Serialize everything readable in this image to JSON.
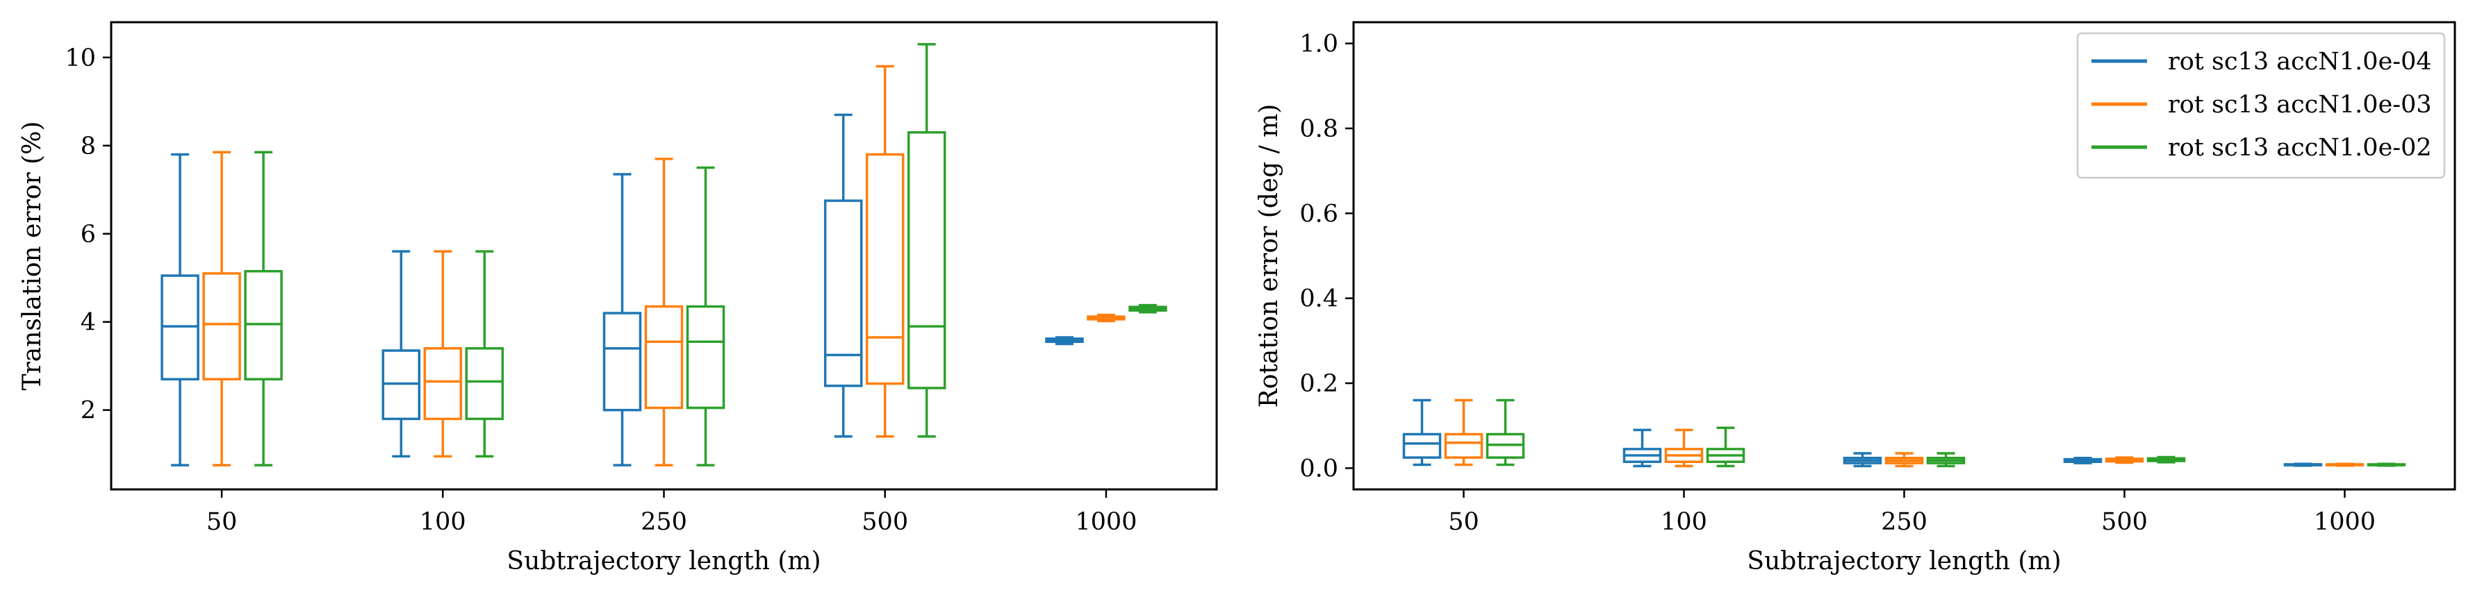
{
  "colors": {
    "series1": "#1f77b4",
    "series2": "#ff7f0e",
    "series3": "#2ca02c"
  },
  "chart_data": [
    {
      "type": "box",
      "xlabel": "Subtrajectory length (m)",
      "ylabel": "Translation error (%)",
      "ylim": [
        0.2,
        10.8
      ],
      "yticks": [
        "2",
        "4",
        "6",
        "8",
        "10"
      ],
      "categories": [
        "50",
        "100",
        "250",
        "500",
        "1000"
      ],
      "grid": false,
      "series": [
        {
          "name": "rot sc13 accN1.0e-04",
          "boxes": [
            {
              "min": 0.75,
              "q1": 2.7,
              "median": 3.9,
              "q3": 5.05,
              "max": 7.8
            },
            {
              "min": 0.95,
              "q1": 1.8,
              "median": 2.6,
              "q3": 3.35,
              "max": 5.6
            },
            {
              "min": 0.75,
              "q1": 2.0,
              "median": 3.4,
              "q3": 4.2,
              "max": 7.35
            },
            {
              "min": 1.4,
              "q1": 2.55,
              "median": 3.25,
              "q3": 6.75,
              "max": 8.7
            },
            {
              "min": 3.5,
              "q1": 3.55,
              "median": 3.58,
              "q3": 3.62,
              "max": 3.65
            }
          ]
        },
        {
          "name": "rot sc13 accN1.0e-03",
          "boxes": [
            {
              "min": 0.75,
              "q1": 2.7,
              "median": 3.95,
              "q3": 5.1,
              "max": 7.85
            },
            {
              "min": 0.95,
              "q1": 1.8,
              "median": 2.65,
              "q3": 3.4,
              "max": 5.6
            },
            {
              "min": 0.75,
              "q1": 2.05,
              "median": 3.55,
              "q3": 4.35,
              "max": 7.7
            },
            {
              "min": 1.4,
              "q1": 2.6,
              "median": 3.65,
              "q3": 7.8,
              "max": 9.8
            },
            {
              "min": 4.02,
              "q1": 4.06,
              "median": 4.09,
              "q3": 4.12,
              "max": 4.16
            }
          ]
        },
        {
          "name": "rot sc13 accN1.0e-02",
          "boxes": [
            {
              "min": 0.75,
              "q1": 2.7,
              "median": 3.95,
              "q3": 5.15,
              "max": 7.85
            },
            {
              "min": 0.95,
              "q1": 1.8,
              "median": 2.65,
              "q3": 3.4,
              "max": 5.6
            },
            {
              "min": 0.75,
              "q1": 2.05,
              "median": 3.55,
              "q3": 4.35,
              "max": 7.5
            },
            {
              "min": 1.4,
              "q1": 2.5,
              "median": 3.9,
              "q3": 8.3,
              "max": 10.3
            },
            {
              "min": 4.22,
              "q1": 4.26,
              "median": 4.3,
              "q3": 4.34,
              "max": 4.38
            }
          ]
        }
      ]
    },
    {
      "type": "box",
      "xlabel": "Subtrajectory length (m)",
      "ylabel": "Rotation error (deg / m)",
      "ylim": [
        -0.05,
        1.05
      ],
      "yticks": [
        "0.0",
        "0.2",
        "0.4",
        "0.6",
        "0.8",
        "1.0"
      ],
      "categories": [
        "50",
        "100",
        "250",
        "500",
        "1000"
      ],
      "grid": false,
      "legend_position": "top-right",
      "legend": [
        "rot sc13 accN1.0e-04",
        "rot sc13 accN1.0e-03",
        "rot sc13 accN1.0e-02"
      ],
      "series": [
        {
          "name": "rot sc13 accN1.0e-04",
          "boxes": [
            {
              "min": 0.008,
              "q1": 0.025,
              "median": 0.058,
              "q3": 0.08,
              "max": 0.16
            },
            {
              "min": 0.005,
              "q1": 0.015,
              "median": 0.03,
              "q3": 0.045,
              "max": 0.09
            },
            {
              "min": 0.005,
              "q1": 0.012,
              "median": 0.018,
              "q3": 0.024,
              "max": 0.035
            },
            {
              "min": 0.012,
              "q1": 0.015,
              "median": 0.018,
              "q3": 0.021,
              "max": 0.024
            },
            {
              "min": 0.006,
              "q1": 0.007,
              "median": 0.008,
              "q3": 0.009,
              "max": 0.01
            }
          ]
        },
        {
          "name": "rot sc13 accN1.0e-03",
          "boxes": [
            {
              "min": 0.008,
              "q1": 0.025,
              "median": 0.06,
              "q3": 0.08,
              "max": 0.16
            },
            {
              "min": 0.005,
              "q1": 0.015,
              "median": 0.03,
              "q3": 0.045,
              "max": 0.09
            },
            {
              "min": 0.005,
              "q1": 0.012,
              "median": 0.018,
              "q3": 0.024,
              "max": 0.035
            },
            {
              "min": 0.013,
              "q1": 0.016,
              "median": 0.019,
              "q3": 0.022,
              "max": 0.025
            },
            {
              "min": 0.006,
              "q1": 0.007,
              "median": 0.008,
              "q3": 0.009,
              "max": 0.01
            }
          ]
        },
        {
          "name": "rot sc13 accN1.0e-02",
          "boxes": [
            {
              "min": 0.008,
              "q1": 0.025,
              "median": 0.055,
              "q3": 0.08,
              "max": 0.16
            },
            {
              "min": 0.005,
              "q1": 0.015,
              "median": 0.03,
              "q3": 0.045,
              "max": 0.095
            },
            {
              "min": 0.005,
              "q1": 0.012,
              "median": 0.018,
              "q3": 0.024,
              "max": 0.035
            },
            {
              "min": 0.014,
              "q1": 0.017,
              "median": 0.02,
              "q3": 0.023,
              "max": 0.026
            },
            {
              "min": 0.006,
              "q1": 0.007,
              "median": 0.008,
              "q3": 0.009,
              "max": 0.01
            }
          ]
        }
      ]
    }
  ]
}
